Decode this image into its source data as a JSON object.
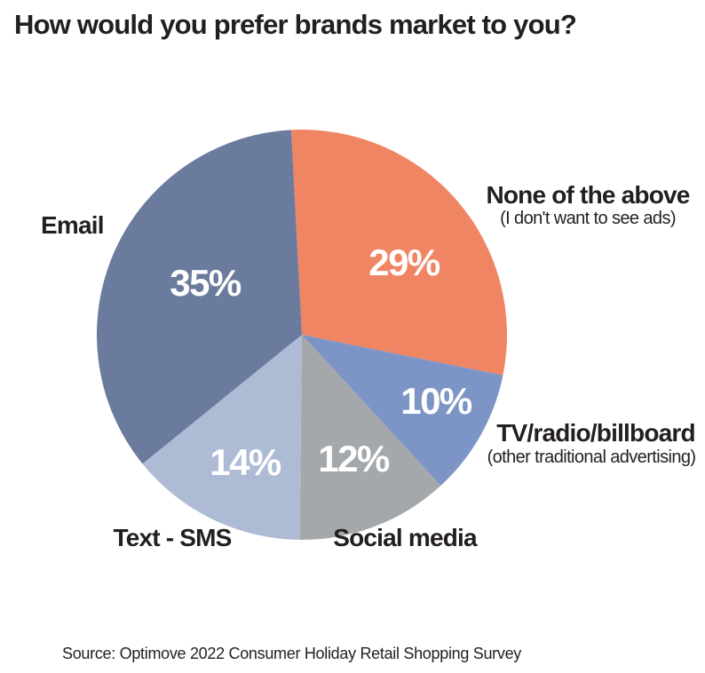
{
  "title": "How would you prefer brands market to you?",
  "source": "Source: Optimove 2022 Consumer Holiday Retail Shopping Survey",
  "colors": {
    "background": "#ffffff",
    "text": "#231f20",
    "slice_value_text": "#ffffff"
  },
  "chart_data": {
    "type": "pie",
    "title": "How would you prefer brands market to you?",
    "legend_position": "outside-labels",
    "start_angle_deg": -3,
    "direction": "clockwise",
    "slices": [
      {
        "id": "none",
        "label": "None of the above",
        "sublabel": "(I don't want to see ads)",
        "value": 29,
        "pct_label": "29%",
        "color": "#f08564"
      },
      {
        "id": "tv",
        "label": "TV/radio/billboard",
        "sublabel": "(other traditional advertising)",
        "value": 10,
        "pct_label": "10%",
        "color": "#7d94c6"
      },
      {
        "id": "social",
        "label": "Social media",
        "sublabel": "",
        "value": 12,
        "pct_label": "12%",
        "color": "#a5a8ab"
      },
      {
        "id": "sms",
        "label": "Text - SMS",
        "sublabel": "",
        "value": 14,
        "pct_label": "14%",
        "color": "#aebbd5"
      },
      {
        "id": "email",
        "label": "Email",
        "sublabel": "",
        "value": 35,
        "pct_label": "35%",
        "color": "#6b7b9e"
      }
    ]
  }
}
